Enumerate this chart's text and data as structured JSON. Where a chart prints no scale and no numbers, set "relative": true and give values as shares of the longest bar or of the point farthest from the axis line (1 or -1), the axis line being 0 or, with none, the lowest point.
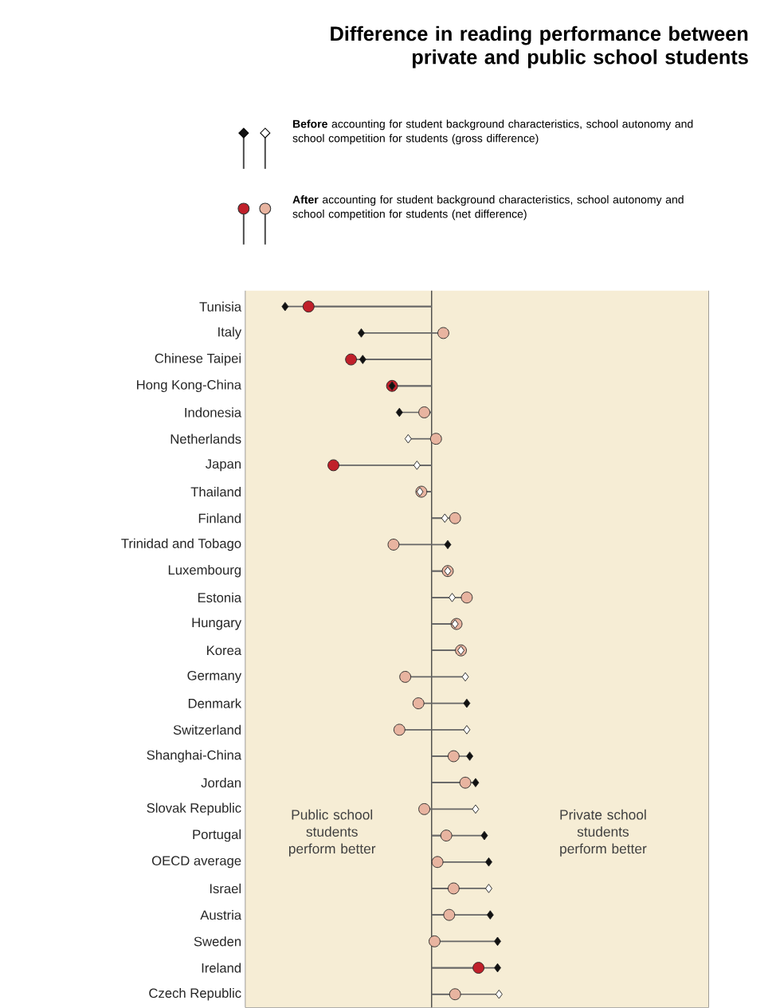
{
  "chart_data": {
    "type": "lollipop",
    "title": "Difference in reading performance between private and public school students",
    "orientation": "horizontal",
    "relative": true,
    "tick_labels": "y",
    "legend": "top",
    "categories": [
      "Tunisia",
      "Italy",
      "Chinese Taipei",
      "Hong Kong-China",
      "Indonesia",
      "Netherlands",
      "Japan",
      "Thailand",
      "Finland",
      "Trinidad and Tobago",
      "Luxembourg",
      "Estonia",
      "Hungary",
      "Korea",
      "Germany",
      "Denmark",
      "Switzerland",
      "Shanghai-China",
      "Jordan",
      "Slovak Republic",
      "Portugal",
      "OECD average",
      "Israel",
      "Austria",
      "Sweden",
      "Ireland",
      "Czech Republic"
    ],
    "series": [
      {
        "name": "**Before** accounting for student background characteristics, school autonomy and school competition for students (gross difference)",
        "marker": "diamond",
        "values": [
          -1.0,
          -0.48,
          -0.47,
          -0.27,
          -0.22,
          -0.16,
          -0.1,
          -0.08,
          0.09,
          0.11,
          0.11,
          0.14,
          0.16,
          0.2,
          0.23,
          0.24,
          0.24,
          0.26,
          0.3,
          0.3,
          0.36,
          0.39,
          0.39,
          0.4,
          0.45,
          0.45,
          0.46
        ],
        "colors": [
          "#111111",
          "#111111",
          "#111111",
          "#111111",
          "#111111",
          "#ffffff",
          "#ffffff",
          "#ffffff",
          "#ffffff",
          "#111111",
          "#ffffff",
          "#ffffff",
          "#ffffff",
          "#ffffff",
          "#ffffff",
          "#111111",
          "#ffffff",
          "#111111",
          "#111111",
          "#ffffff",
          "#111111",
          "#111111",
          "#ffffff",
          "#111111",
          "#111111",
          "#111111",
          "#ffffff"
        ]
      },
      {
        "name": "**After** accounting for student background characteristics, school autonomy and school competition for students (net difference)",
        "marker": "circle",
        "values": [
          -0.84,
          0.08,
          -0.55,
          -0.27,
          -0.05,
          0.03,
          -0.67,
          -0.07,
          0.16,
          -0.26,
          0.11,
          0.24,
          0.17,
          0.2,
          -0.18,
          -0.09,
          -0.22,
          0.15,
          0.23,
          -0.05,
          0.1,
          0.04,
          0.15,
          0.12,
          0.02,
          0.32,
          0.16
        ],
        "colors": [
          "#c0202a",
          "#e8b4a0",
          "#c0202a",
          "#c0202a",
          "#e8b4a0",
          "#e8b4a0",
          "#c0202a",
          "#e8b4a0",
          "#e8b4a0",
          "#e8b4a0",
          "#e8b4a0",
          "#e8b4a0",
          "#e8b4a0",
          "#e8b4a0",
          "#e8b4a0",
          "#e8b4a0",
          "#e8b4a0",
          "#e8b4a0",
          "#e8b4a0",
          "#e8b4a0",
          "#e8b4a0",
          "#e8b4a0",
          "#e8b4a0",
          "#e8b4a0",
          "#e8b4a0",
          "#c0202a",
          "#e8b4a0"
        ]
      }
    ],
    "annotations": [
      "Public school students perform better",
      "Private school students perform better"
    ]
  }
}
